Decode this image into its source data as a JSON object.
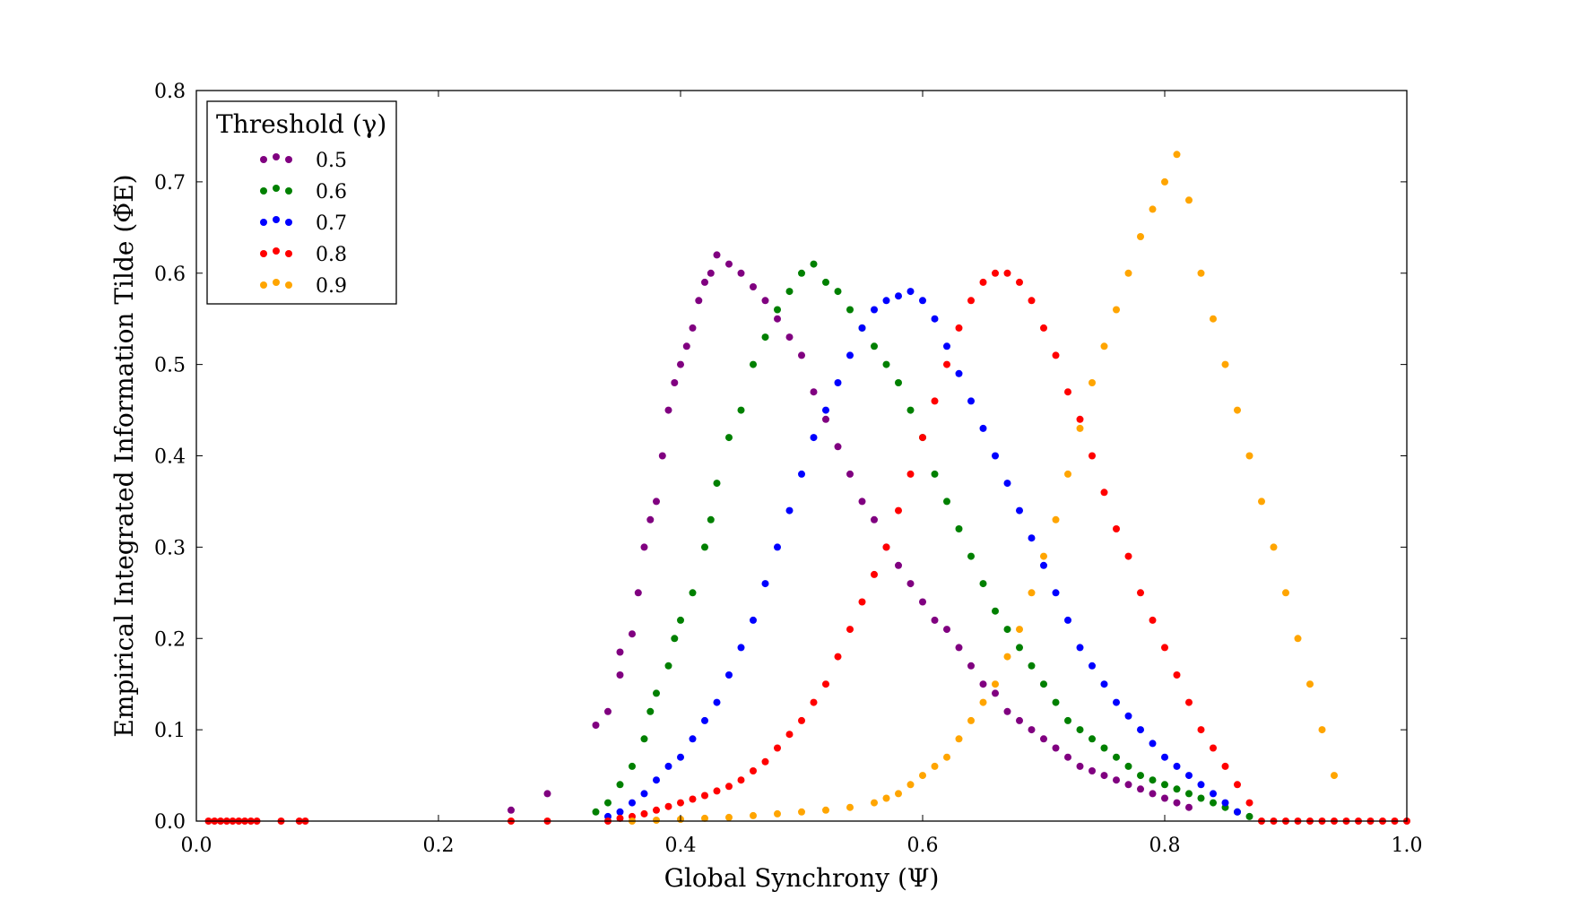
{
  "chart_data": {
    "type": "scatter",
    "xlabel": "Global Synchrony (Ψ)",
    "ylabel": "Empirical Integrated Information Tilde (Φ̃E)",
    "xlim": [
      0.0,
      1.0
    ],
    "ylim": [
      0.0,
      0.8
    ],
    "xticks": [
      "0.0",
      "0.2",
      "0.4",
      "0.6",
      "0.8",
      "1.0"
    ],
    "yticks": [
      "0.0",
      "0.1",
      "0.2",
      "0.3",
      "0.4",
      "0.5",
      "0.6",
      "0.7",
      "0.8"
    ],
    "grid": false,
    "legend": {
      "title": "Threshold (γ)",
      "placement": "top-left"
    },
    "series": [
      {
        "name": "0.5",
        "color": "#800080",
        "x": [
          0.26,
          0.29,
          0.33,
          0.34,
          0.35,
          0.35,
          0.36,
          0.365,
          0.37,
          0.375,
          0.38,
          0.385,
          0.39,
          0.395,
          0.4,
          0.405,
          0.41,
          0.415,
          0.42,
          0.425,
          0.43,
          0.44,
          0.45,
          0.46,
          0.47,
          0.48,
          0.49,
          0.5,
          0.51,
          0.52,
          0.53,
          0.54,
          0.55,
          0.56,
          0.57,
          0.58,
          0.59,
          0.6,
          0.61,
          0.62,
          0.63,
          0.64,
          0.65,
          0.66,
          0.67,
          0.68,
          0.69,
          0.7,
          0.71,
          0.72,
          0.73,
          0.74,
          0.75,
          0.76,
          0.77,
          0.78,
          0.79,
          0.8,
          0.81,
          0.82
        ],
        "y": [
          0.012,
          0.03,
          0.105,
          0.12,
          0.16,
          0.185,
          0.205,
          0.25,
          0.3,
          0.33,
          0.35,
          0.4,
          0.45,
          0.48,
          0.5,
          0.52,
          0.54,
          0.57,
          0.59,
          0.6,
          0.62,
          0.61,
          0.6,
          0.585,
          0.57,
          0.55,
          0.53,
          0.51,
          0.47,
          0.44,
          0.41,
          0.38,
          0.35,
          0.33,
          0.3,
          0.28,
          0.26,
          0.24,
          0.22,
          0.21,
          0.19,
          0.17,
          0.15,
          0.14,
          0.12,
          0.11,
          0.1,
          0.09,
          0.08,
          0.07,
          0.06,
          0.055,
          0.05,
          0.045,
          0.04,
          0.035,
          0.03,
          0.025,
          0.02,
          0.015
        ]
      },
      {
        "name": "0.6",
        "color": "#008000",
        "x": [
          0.33,
          0.34,
          0.35,
          0.36,
          0.37,
          0.375,
          0.38,
          0.39,
          0.395,
          0.4,
          0.41,
          0.42,
          0.425,
          0.43,
          0.44,
          0.45,
          0.46,
          0.47,
          0.48,
          0.49,
          0.5,
          0.51,
          0.52,
          0.53,
          0.54,
          0.55,
          0.56,
          0.57,
          0.58,
          0.59,
          0.6,
          0.61,
          0.62,
          0.63,
          0.64,
          0.65,
          0.66,
          0.67,
          0.68,
          0.69,
          0.7,
          0.71,
          0.72,
          0.73,
          0.74,
          0.75,
          0.76,
          0.77,
          0.78,
          0.79,
          0.8,
          0.81,
          0.82,
          0.83,
          0.84,
          0.85,
          0.86,
          0.87
        ],
        "y": [
          0.01,
          0.02,
          0.04,
          0.06,
          0.09,
          0.12,
          0.14,
          0.17,
          0.2,
          0.22,
          0.25,
          0.3,
          0.33,
          0.37,
          0.42,
          0.45,
          0.5,
          0.53,
          0.56,
          0.58,
          0.6,
          0.61,
          0.59,
          0.58,
          0.56,
          0.54,
          0.52,
          0.5,
          0.48,
          0.45,
          0.42,
          0.38,
          0.35,
          0.32,
          0.29,
          0.26,
          0.23,
          0.21,
          0.19,
          0.17,
          0.15,
          0.13,
          0.11,
          0.1,
          0.09,
          0.08,
          0.07,
          0.06,
          0.05,
          0.045,
          0.04,
          0.035,
          0.03,
          0.025,
          0.02,
          0.015,
          0.01,
          0.005
        ]
      },
      {
        "name": "0.7",
        "color": "#0000ff",
        "x": [
          0.34,
          0.35,
          0.36,
          0.37,
          0.38,
          0.39,
          0.4,
          0.41,
          0.42,
          0.43,
          0.44,
          0.45,
          0.46,
          0.47,
          0.48,
          0.49,
          0.5,
          0.51,
          0.52,
          0.53,
          0.54,
          0.55,
          0.56,
          0.57,
          0.58,
          0.59,
          0.6,
          0.61,
          0.62,
          0.63,
          0.64,
          0.65,
          0.66,
          0.67,
          0.68,
          0.69,
          0.7,
          0.71,
          0.72,
          0.73,
          0.74,
          0.75,
          0.76,
          0.77,
          0.78,
          0.79,
          0.8,
          0.81,
          0.82,
          0.83,
          0.84,
          0.85,
          0.86
        ],
        "y": [
          0.005,
          0.01,
          0.02,
          0.03,
          0.045,
          0.06,
          0.07,
          0.09,
          0.11,
          0.13,
          0.16,
          0.19,
          0.22,
          0.26,
          0.3,
          0.34,
          0.38,
          0.42,
          0.45,
          0.48,
          0.51,
          0.54,
          0.56,
          0.57,
          0.575,
          0.58,
          0.57,
          0.55,
          0.52,
          0.49,
          0.46,
          0.43,
          0.4,
          0.37,
          0.34,
          0.31,
          0.28,
          0.25,
          0.22,
          0.19,
          0.17,
          0.15,
          0.13,
          0.115,
          0.1,
          0.085,
          0.07,
          0.06,
          0.05,
          0.04,
          0.03,
          0.02,
          0.01
        ]
      },
      {
        "name": "0.8",
        "color": "#ff0000",
        "x": [
          0.01,
          0.015,
          0.02,
          0.025,
          0.03,
          0.035,
          0.04,
          0.045,
          0.05,
          0.07,
          0.085,
          0.09,
          0.26,
          0.29,
          0.34,
          0.35,
          0.36,
          0.37,
          0.38,
          0.39,
          0.4,
          0.41,
          0.42,
          0.43,
          0.44,
          0.45,
          0.46,
          0.47,
          0.48,
          0.49,
          0.5,
          0.51,
          0.52,
          0.53,
          0.54,
          0.55,
          0.56,
          0.57,
          0.58,
          0.59,
          0.6,
          0.61,
          0.62,
          0.63,
          0.64,
          0.65,
          0.66,
          0.67,
          0.68,
          0.69,
          0.7,
          0.71,
          0.72,
          0.73,
          0.74,
          0.75,
          0.76,
          0.77,
          0.78,
          0.79,
          0.8,
          0.81,
          0.82,
          0.83,
          0.84,
          0.85,
          0.86,
          0.87,
          0.88,
          0.89,
          0.9,
          0.91,
          0.92,
          0.93,
          0.94,
          0.95,
          0.96,
          0.97,
          0.98,
          0.99,
          1.0
        ],
        "y": [
          0.0,
          0.0,
          0.0,
          0.0,
          0.0,
          0.0,
          0.0,
          0.0,
          0.0,
          0.0,
          0.0,
          0.0,
          0.0,
          0.0,
          0.0,
          0.003,
          0.005,
          0.008,
          0.012,
          0.016,
          0.02,
          0.024,
          0.028,
          0.033,
          0.038,
          0.045,
          0.055,
          0.065,
          0.08,
          0.095,
          0.11,
          0.13,
          0.15,
          0.18,
          0.21,
          0.24,
          0.27,
          0.3,
          0.34,
          0.38,
          0.42,
          0.46,
          0.5,
          0.54,
          0.57,
          0.59,
          0.6,
          0.6,
          0.59,
          0.57,
          0.54,
          0.51,
          0.47,
          0.44,
          0.4,
          0.36,
          0.32,
          0.29,
          0.25,
          0.22,
          0.19,
          0.16,
          0.13,
          0.1,
          0.08,
          0.06,
          0.04,
          0.02,
          0.0,
          0.0,
          0.0,
          0.0,
          0.0,
          0.0,
          0.0,
          0.0,
          0.0,
          0.0,
          0.0,
          0.0,
          0.0
        ]
      },
      {
        "name": "0.9",
        "color": "#ffa500",
        "x": [
          0.36,
          0.38,
          0.4,
          0.42,
          0.44,
          0.46,
          0.48,
          0.5,
          0.52,
          0.54,
          0.56,
          0.57,
          0.58,
          0.59,
          0.6,
          0.61,
          0.62,
          0.63,
          0.64,
          0.65,
          0.66,
          0.67,
          0.68,
          0.69,
          0.7,
          0.71,
          0.72,
          0.73,
          0.74,
          0.75,
          0.76,
          0.77,
          0.78,
          0.79,
          0.8,
          0.81,
          0.82,
          0.83,
          0.84,
          0.85,
          0.86,
          0.87,
          0.88,
          0.89,
          0.9,
          0.91,
          0.92,
          0.93,
          0.94
        ],
        "y": [
          0.0,
          0.001,
          0.002,
          0.003,
          0.004,
          0.006,
          0.008,
          0.01,
          0.012,
          0.015,
          0.02,
          0.025,
          0.03,
          0.04,
          0.05,
          0.06,
          0.07,
          0.09,
          0.11,
          0.13,
          0.15,
          0.18,
          0.21,
          0.25,
          0.29,
          0.33,
          0.38,
          0.43,
          0.48,
          0.52,
          0.56,
          0.6,
          0.64,
          0.67,
          0.7,
          0.73,
          0.68,
          0.6,
          0.55,
          0.5,
          0.45,
          0.4,
          0.35,
          0.3,
          0.25,
          0.2,
          0.15,
          0.1,
          0.05
        ]
      }
    ]
  }
}
